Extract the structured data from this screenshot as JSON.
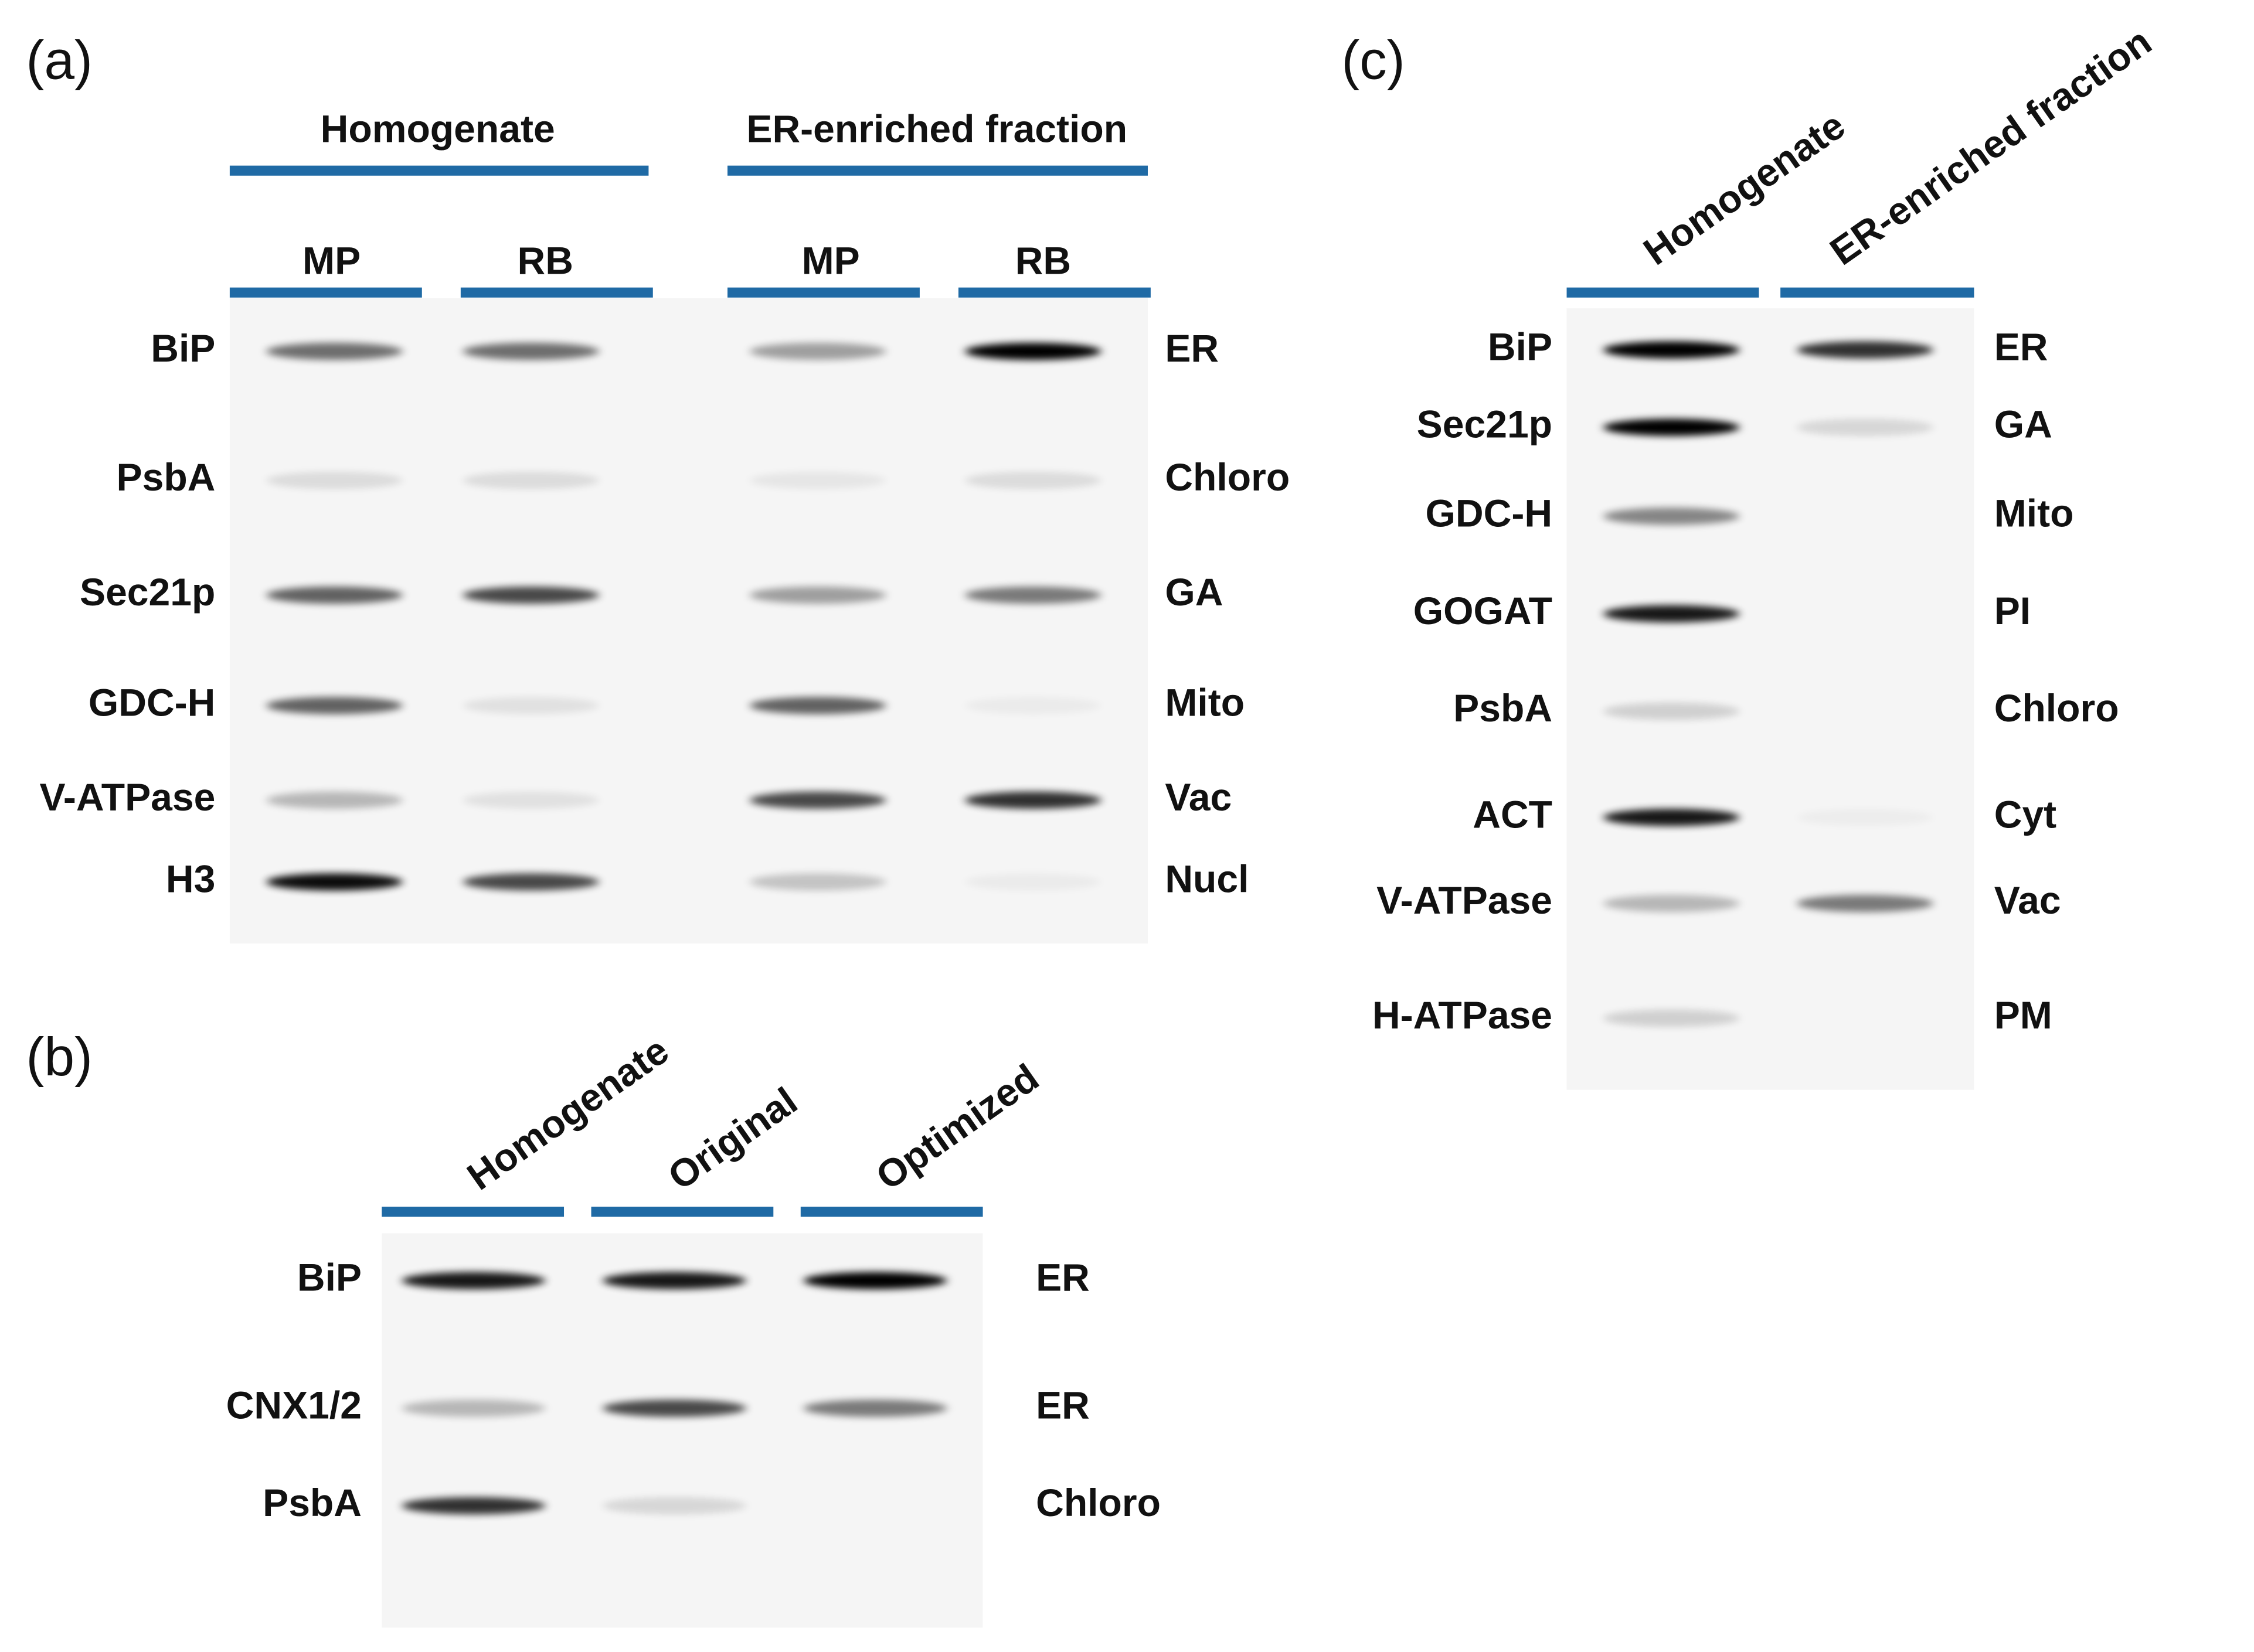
{
  "panels": [
    {
      "label": "(a)",
      "groups": [
        {
          "title": "Homogenate",
          "lanes": [
            "MP",
            "RB"
          ]
        },
        {
          "title": "ER-enriched fraction",
          "lanes": [
            "MP",
            "RB"
          ]
        }
      ],
      "rows": [
        {
          "protein": "BiP",
          "compartment": "ER"
        },
        {
          "protein": "PsbA",
          "compartment": "Chloro"
        },
        {
          "protein": "Sec21p",
          "compartment": "GA"
        },
        {
          "protein": "GDC-H",
          "compartment": "Mito"
        },
        {
          "protein": "V-ATPase",
          "compartment": "Vac"
        },
        {
          "protein": "H3",
          "compartment": "Nucl"
        }
      ]
    },
    {
      "label": "(b)",
      "lanes": [
        "Homogenate",
        "Original",
        "Optimized"
      ],
      "rows": [
        {
          "protein": "BiP",
          "compartment": "ER"
        },
        {
          "protein": "CNX1/2",
          "compartment": "ER"
        },
        {
          "protein": "PsbA",
          "compartment": "Chloro"
        }
      ]
    },
    {
      "label": "(c)",
      "lanes": [
        "Homogenate",
        "ER-enriched fraction"
      ],
      "rows": [
        {
          "protein": "BiP",
          "compartment": "ER"
        },
        {
          "protein": "Sec21p",
          "compartment": "GA"
        },
        {
          "protein": "GDC-H",
          "compartment": "Mito"
        },
        {
          "protein": "GOGAT",
          "compartment": "PI"
        },
        {
          "protein": "PsbA",
          "compartment": "Chloro"
        },
        {
          "protein": "ACT",
          "compartment": "Cyt"
        },
        {
          "protein": "V-ATPase",
          "compartment": "Vac"
        },
        {
          "protein": "H-ATPase",
          "compartment": "PM"
        }
      ]
    }
  ]
}
